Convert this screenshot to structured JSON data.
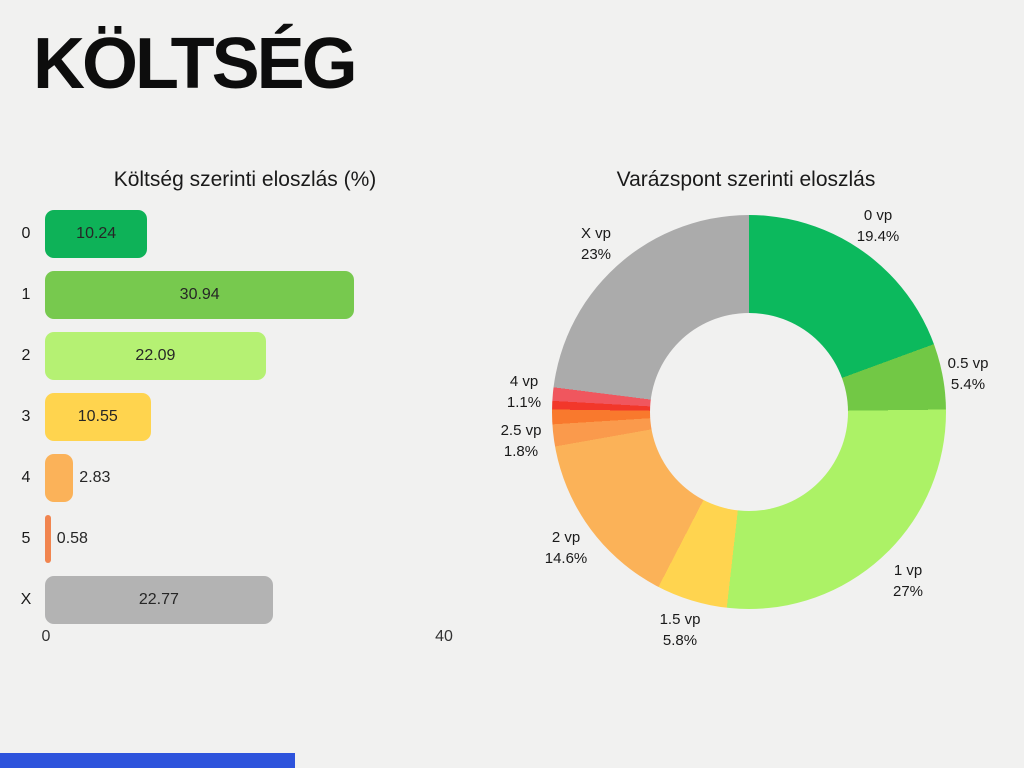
{
  "page": {
    "title": "KÖLTSÉG",
    "background_color": "#F1F1F0"
  },
  "chart_data": [
    {
      "type": "bar",
      "orientation": "horizontal",
      "title": "Költség szerinti eloszlás (%)",
      "categories": [
        "0",
        "1",
        "2",
        "3",
        "4",
        "5",
        "X"
      ],
      "values": [
        10.24,
        30.94,
        22.09,
        10.55,
        2.83,
        0.58,
        22.77
      ],
      "colors": [
        "#0EB258",
        "#77C94E",
        "#B5F173",
        "#FFD44E",
        "#FBB259",
        "#F1854F",
        "#B3B3B3"
      ],
      "xlim": [
        0,
        40
      ],
      "x_ticks": [
        "0",
        "40"
      ],
      "grid": "off",
      "value_labels": "on"
    },
    {
      "type": "pie",
      "subtype": "donut",
      "title": "Varázspont szerinti eloszlás",
      "start_angle_deg": 0,
      "direction": "clockwise",
      "segments": [
        {
          "label": "0 vp",
          "pct": 19.4,
          "pct_label": "19.4%",
          "color": "#0CB95D"
        },
        {
          "label": "0.5 vp",
          "pct": 5.4,
          "pct_label": "5.4%",
          "color": "#72C845"
        },
        {
          "label": "1 vp",
          "pct": 27,
          "pct_label": "27%",
          "color": "#ACF266"
        },
        {
          "label": "1.5 vp",
          "pct": 5.8,
          "pct_label": "5.8%",
          "color": "#FFD44F"
        },
        {
          "label": "2 vp",
          "pct": 14.6,
          "pct_label": "14.6%",
          "color": "#FBB258"
        },
        {
          "label": "2.5 vp",
          "pct": 1.8,
          "pct_label": "1.8%",
          "color": "#FA9A4C"
        },
        {
          "pct": 1.2,
          "color": "#F9792D"
        },
        {
          "pct": 0.7,
          "color": "#F2372A"
        },
        {
          "label": "4 vp",
          "pct": 1.1,
          "pct_label": "1.1%",
          "color": "#F0565E"
        },
        {
          "label": "X vp",
          "pct": 23,
          "pct_label": "23%",
          "color": "#ABABAB"
        }
      ]
    }
  ],
  "footer": {
    "progress_color": "#2D53DC",
    "progress_width_pct": "28.8%"
  }
}
